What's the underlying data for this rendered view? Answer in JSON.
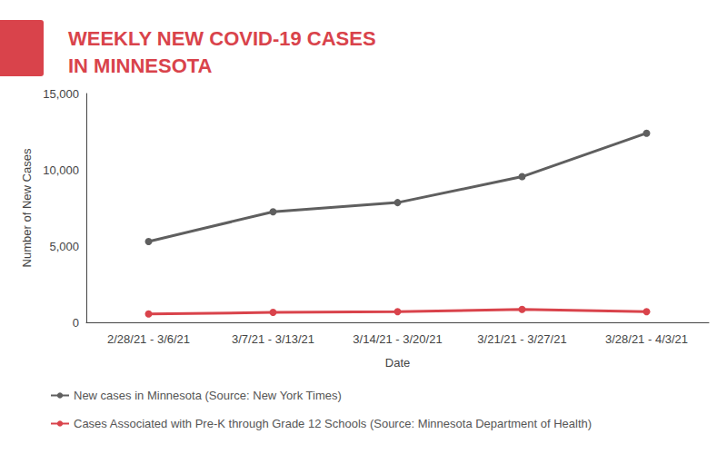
{
  "chart_data": {
    "type": "line",
    "title": "WEEKLY NEW COVID-19 CASES\nIN MINNESOTA",
    "x_label": "Date",
    "y_label": "Number of New Cases",
    "categories": [
      "2/28/21 - 3/6/21",
      "3/7/21 - 3/13/21",
      "3/14/21 - 3/20/21",
      "3/21/21 - 3/27/21",
      "3/28/21 - 4/3/21"
    ],
    "series": [
      {
        "name": "New cases in Minnesota (Source: New York Times)",
        "color": "#5f5f5f",
        "marker": "circle",
        "values": [
          5300,
          7250,
          7850,
          9550,
          12400
        ]
      },
      {
        "name": "Cases Associated with Pre-K through Grade 12 Schools (Source: Minnesota Department of Health)",
        "color": "#d9434b",
        "marker": "circle",
        "values": [
          550,
          650,
          700,
          850,
          700
        ]
      }
    ],
    "ylim": [
      0,
      15000
    ],
    "yticks": [
      0,
      {
        "value": 5000,
        "label": "5,000"
      },
      {
        "value": 10000,
        "label": "10,000"
      },
      {
        "value": 15000,
        "label": "15,000"
      }
    ],
    "grid": false,
    "legend": "bottom-left"
  }
}
